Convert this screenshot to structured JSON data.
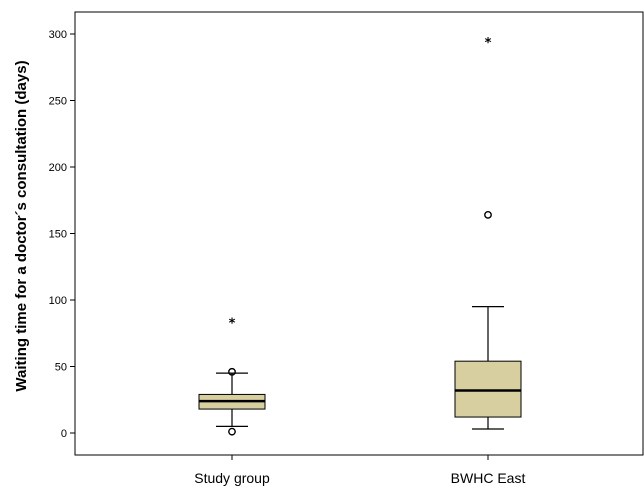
{
  "chart_data": {
    "type": "boxplot",
    "title": "",
    "xlabel": "",
    "ylabel": "Waiting time for a doctor´s consultation (days)",
    "ylim": [
      -16,
      316
    ],
    "yticks": [
      0,
      50,
      100,
      150,
      200,
      250,
      300
    ],
    "ytick_labels": [
      "0",
      "50",
      "100",
      "150",
      "200",
      "250",
      "300"
    ],
    "grid": false,
    "legend": "none",
    "box_color": "#d8cfa0",
    "categories": [
      "Study group",
      "BWHC East"
    ],
    "boxes": [
      {
        "category": "Study group",
        "whisker_low": 5,
        "q1": 18,
        "median": 24,
        "q3": 29,
        "whisker_high": 45,
        "outliers": [
          1,
          46
        ],
        "extremes": [
          83
        ]
      },
      {
        "category": "BWHC East",
        "whisker_low": 3,
        "q1": 12,
        "median": 32,
        "q3": 54,
        "whisker_high": 95,
        "outliers": [
          164
        ],
        "extremes": [
          294
        ]
      }
    ]
  }
}
